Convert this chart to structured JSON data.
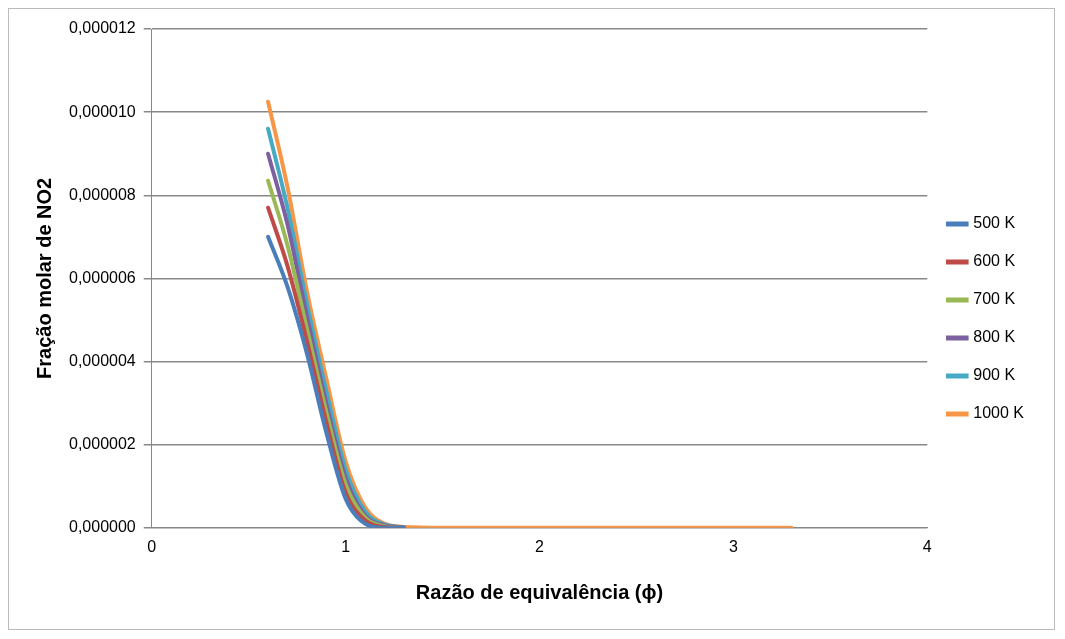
{
  "chart_data": {
    "type": "line",
    "xlabel": "Razão de equivalência (ϕ)",
    "ylabel": "Fração molar de NO2",
    "x": [
      0.6,
      0.7,
      0.8,
      0.9,
      1.0,
      1.1,
      1.2,
      1.3,
      1.5,
      2,
      3,
      3.3
    ],
    "series": [
      {
        "name": "500 K",
        "color": "#4a7ebb",
        "values": [
          7e-06,
          5.8e-06,
          4.2e-06,
          2.3e-06,
          7e-07,
          1e-07,
          0,
          0,
          null,
          null,
          null,
          null
        ]
      },
      {
        "name": "600 K",
        "color": "#be4b48",
        "values": [
          7.7e-06,
          6.3e-06,
          4.5e-06,
          2.55e-06,
          8.5e-07,
          1.8e-07,
          2e-08,
          0,
          null,
          null,
          null,
          null
        ]
      },
      {
        "name": "700 K",
        "color": "#98b954",
        "values": [
          8.35e-06,
          6.8e-06,
          4.8e-06,
          2.8e-06,
          1.05e-06,
          2.5e-07,
          4e-08,
          0,
          null,
          null,
          null,
          null
        ]
      },
      {
        "name": "800 K",
        "color": "#7d60a0",
        "values": [
          9e-06,
          7.3e-06,
          5.1e-06,
          3e-06,
          1.2e-06,
          3e-07,
          6e-08,
          1e-08,
          null,
          null,
          null,
          null
        ]
      },
      {
        "name": "900 K",
        "color": "#46aac5",
        "values": [
          9.6e-06,
          7.7e-06,
          5.4e-06,
          3.3e-06,
          1.4e-06,
          4e-07,
          8e-08,
          1.5e-08,
          null,
          null,
          null,
          null
        ]
      },
      {
        "name": "1000 K",
        "color": "#f79646",
        "values": [
          1.025e-05,
          8.2e-06,
          5.7e-06,
          3.6e-06,
          1.6e-06,
          5e-07,
          1e-07,
          2e-08,
          0,
          0,
          0,
          0
        ]
      }
    ],
    "xlim": [
      0,
      4
    ],
    "xticks": [
      0,
      1,
      2,
      3,
      4
    ],
    "ylim": [
      0,
      1.2e-05
    ],
    "yticks": [
      {
        "value": 0,
        "label": "0,000000"
      },
      {
        "value": 2e-06,
        "label": "0,000002"
      },
      {
        "value": 4e-06,
        "label": "0,000004"
      },
      {
        "value": 6e-06,
        "label": "0,000006"
      },
      {
        "value": 8e-06,
        "label": "0,000008"
      },
      {
        "value": 1e-05,
        "label": "0,000010"
      },
      {
        "value": 1.2e-05,
        "label": "0,000012"
      }
    ],
    "grid": "y",
    "legend": "right",
    "marker": "none",
    "line_style": "solid"
  }
}
